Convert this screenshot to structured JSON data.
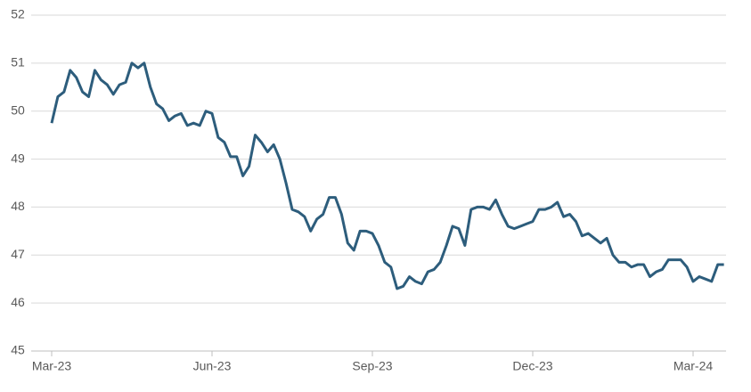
{
  "chart_data": {
    "type": "line",
    "categories": [
      "Mar-23",
      null,
      null,
      null,
      null,
      null,
      null,
      null,
      null,
      null,
      null,
      null,
      null,
      null,
      null,
      null,
      null,
      null,
      null,
      null,
      null,
      null,
      null,
      null,
      null,
      null,
      "Jun-23",
      null,
      null,
      null,
      null,
      null,
      null,
      null,
      null,
      null,
      null,
      null,
      null,
      null,
      null,
      null,
      null,
      null,
      null,
      null,
      null,
      null,
      null,
      null,
      null,
      null,
      "Sep-23",
      null,
      null,
      null,
      null,
      null,
      null,
      null,
      null,
      null,
      null,
      null,
      null,
      null,
      null,
      null,
      null,
      null,
      null,
      null,
      null,
      null,
      null,
      null,
      null,
      null,
      "Dec-23",
      null,
      null,
      null,
      null,
      null,
      null,
      null,
      null,
      null,
      null,
      null,
      null,
      null,
      null,
      null,
      null,
      null,
      null,
      null,
      null,
      null,
      null,
      null,
      null,
      null,
      "Mar-24",
      null,
      null,
      null,
      null,
      null
    ],
    "values": [
      49.75,
      50.3,
      50.4,
      50.85,
      50.7,
      50.4,
      50.3,
      50.85,
      50.65,
      50.55,
      50.35,
      50.55,
      50.6,
      51.0,
      50.9,
      51.0,
      50.5,
      50.15,
      50.05,
      49.8,
      49.9,
      49.95,
      49.7,
      49.75,
      49.7,
      50.0,
      49.95,
      49.45,
      49.35,
      49.05,
      49.05,
      48.65,
      48.85,
      49.5,
      49.35,
      49.15,
      49.3,
      49.0,
      48.5,
      47.95,
      47.9,
      47.8,
      47.5,
      47.75,
      47.85,
      48.2,
      48.2,
      47.85,
      47.25,
      47.1,
      47.5,
      47.5,
      47.45,
      47.2,
      46.85,
      46.75,
      46.3,
      46.35,
      46.55,
      46.45,
      46.4,
      46.65,
      46.7,
      46.85,
      47.2,
      47.6,
      47.55,
      47.2,
      47.95,
      48.0,
      48.0,
      47.95,
      48.15,
      47.85,
      47.6,
      47.55,
      47.6,
      47.65,
      47.7,
      47.95,
      47.95,
      48.0,
      48.1,
      47.8,
      47.85,
      47.7,
      47.4,
      47.45,
      47.35,
      47.25,
      47.35,
      47.0,
      46.85,
      46.85,
      46.75,
      46.8,
      46.8,
      46.55,
      46.65,
      46.7,
      46.9,
      46.9,
      46.9,
      46.75,
      46.45,
      46.55,
      46.5,
      46.45,
      46.8,
      46.8
    ],
    "color": "#2d5d7c",
    "ylim": [
      45,
      52
    ],
    "yticks": [
      45,
      46,
      47,
      48,
      49,
      50,
      51,
      52
    ],
    "grid": true
  }
}
